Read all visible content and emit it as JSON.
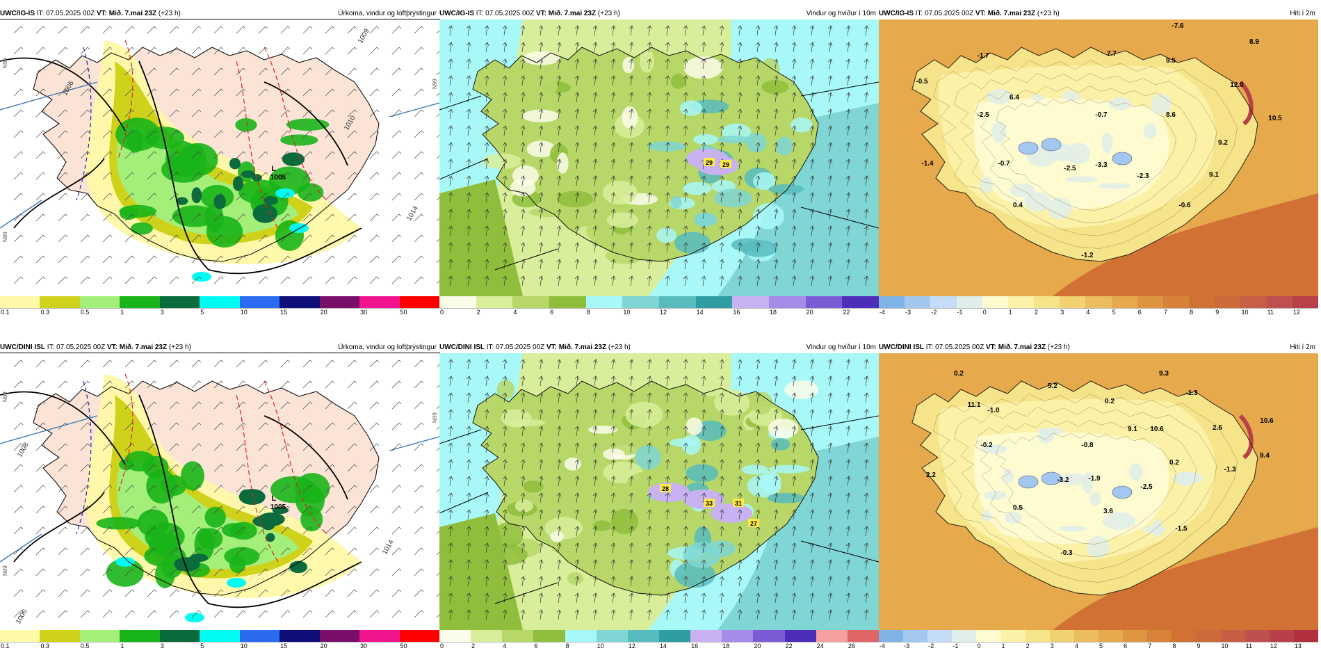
{
  "header": {
    "init": "IT: 07.05.2025 00Z",
    "valid": "VT: Mið. 7.mai 23Z",
    "lead": "(+23 h)"
  },
  "rows": [
    {
      "model": "UWC/IG-IS"
    },
    {
      "model": "UWC/DINI ISL"
    }
  ],
  "panel_titles": {
    "precip": "Úrkoma, vindur og loftþrýstingur",
    "wind": "Vindur og hviður í 10m",
    "temp": "Hiti í 2m"
  },
  "colors": {
    "precip": [
      "#fff9a8",
      "#cfd21a",
      "#a3ef7a",
      "#19b419",
      "#0a6b3c",
      "#00fbf2",
      "#2b6bf0",
      "#0e0e7a",
      "#7a0f6a",
      "#f0148e",
      "#ff0000"
    ],
    "wind": [
      "#fbfdea",
      "#d8ee9a",
      "#b7d868",
      "#8fbe3c",
      "#a8f8f8",
      "#7fd6d4",
      "#58bcbe",
      "#2f9ea2",
      "#c8b2f2",
      "#a58ce8",
      "#7c5cd6",
      "#4c2eb8",
      "#f4a0a0",
      "#e06666"
    ],
    "temp": [
      "#80b4e6",
      "#a3c8f0",
      "#c4dcf7",
      "#dfeeea",
      "#fffbd0",
      "#fbf2a8",
      "#f6e48a",
      "#f1d170",
      "#ecbd5e",
      "#e6a94c",
      "#de9540",
      "#d78238",
      "#d17234",
      "#cc6a3a",
      "#c85e44",
      "#c05050",
      "#b84048",
      "#b03040"
    ]
  },
  "colorbars": {
    "precip": [
      "0.1",
      "0.3",
      "0.5",
      "1",
      "3",
      "5",
      "10",
      "15",
      "20",
      "30",
      "50"
    ],
    "wind_top": [
      "0",
      "2",
      "4",
      "6",
      "8",
      "10",
      "12",
      "14",
      "16",
      "18",
      "20",
      "22"
    ],
    "wind_bottom": [
      "0",
      "2",
      "4",
      "6",
      "8",
      "10",
      "12",
      "14",
      "16",
      "18",
      "20",
      "22",
      "24",
      "26"
    ],
    "temp_top": [
      "-4",
      "-3",
      "-2",
      "-1",
      "0",
      "1",
      "2",
      "3",
      "4",
      "5",
      "6",
      "7",
      "8",
      "9",
      "10",
      "11",
      "12"
    ],
    "temp_bottom": [
      "-4",
      "-3",
      "-2",
      "-1",
      "0",
      "1",
      "2",
      "3",
      "4",
      "5",
      "6",
      "7",
      "8",
      "9",
      "10",
      "11",
      "12",
      "13"
    ]
  },
  "annotations": {
    "precip_top": {
      "low_value": "1005",
      "low_symbol": "L",
      "isobars": [
        "1010",
        "1014",
        "1009",
        "1006"
      ],
      "edge_marks": [
        "N99",
        "N99",
        "N99"
      ]
    },
    "precip_bottom": {
      "low_value": "1005",
      "low_symbol": "L",
      "isobars": [
        "1008",
        "1014",
        "1006"
      ],
      "edge_marks": [
        "N99",
        "N99",
        "N99"
      ]
    },
    "wind_top_gusts": [
      "29",
      "29"
    ],
    "wind_bottom_gusts": [
      "28",
      "33",
      "31",
      "27"
    ],
    "temp_top_values": [
      "-7.6",
      "8.9",
      "-1.7",
      "7.7",
      "9.5",
      "-0.5",
      "6.4",
      "12.0",
      "-2.5",
      "-0.7",
      "8.6",
      "10.5",
      "9.2",
      "-1.4",
      "-0.7",
      "-2.5",
      "-3.3",
      "-2.3",
      "9.1",
      "0.4",
      "-0.6",
      "-1.2"
    ],
    "temp_bottom_values": [
      "0.2",
      "5.2",
      "9.3",
      "-1.3",
      "-1.0",
      "0.2",
      "10.6",
      "11.1",
      "-0.2",
      "-0.8",
      "9.1",
      "10.6",
      "2.6",
      "9.4",
      "0.2",
      "-1.3",
      "2.2",
      "-3.2",
      "-1.9",
      "-2.5",
      "0.5",
      "3.6",
      "-1.5",
      "-0.3"
    ]
  }
}
